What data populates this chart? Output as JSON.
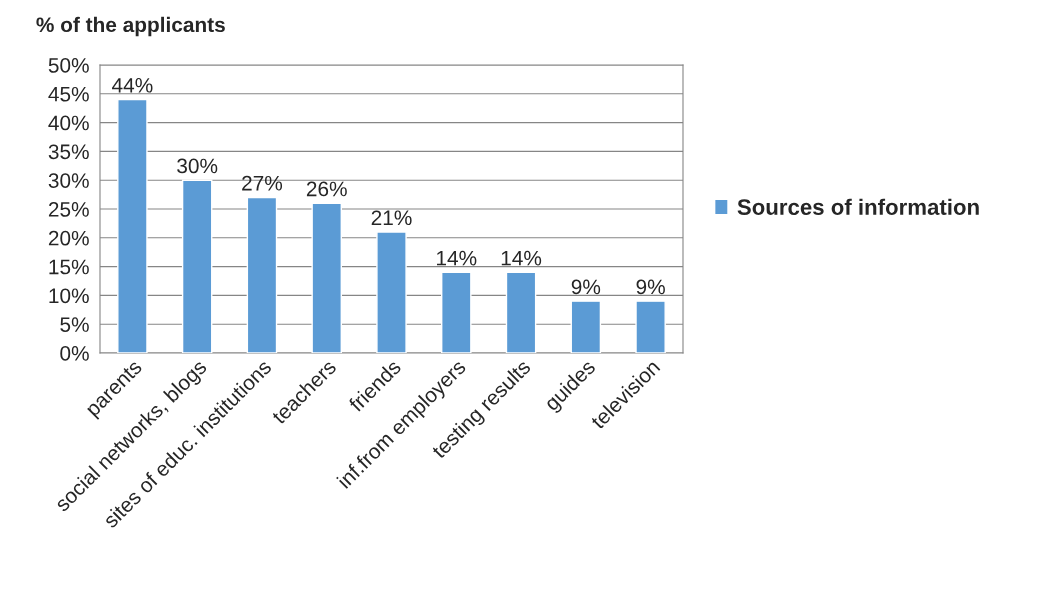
{
  "chart_data": {
    "type": "bar",
    "ylabel": "% of the applicants",
    "categories": [
      "parents",
      "social networks, blogs",
      "sites of educ. institutions",
      "teachers",
      "friends",
      "inf.from employers",
      "testing results",
      "guides",
      "television"
    ],
    "series": [
      {
        "name": "Sources of information",
        "color": "#5b9bd5",
        "values": [
          44,
          30,
          27,
          26,
          21,
          14,
          14,
          9,
          9
        ],
        "value_labels": [
          "44%",
          "30%",
          "27%",
          "26%",
          "21%",
          "14%",
          "14%",
          "9%",
          "9%"
        ]
      }
    ],
    "ylim": [
      0,
      50
    ],
    "yticks": [
      {
        "value": 0,
        "label": "0%"
      },
      {
        "value": 5,
        "label": "5%"
      },
      {
        "value": 10,
        "label": "10%"
      },
      {
        "value": 15,
        "label": "15%"
      },
      {
        "value": 20,
        "label": "20%"
      },
      {
        "value": 25,
        "label": "25%"
      },
      {
        "value": 30,
        "label": "30%"
      },
      {
        "value": 35,
        "label": "35%"
      },
      {
        "value": 40,
        "label": "40%"
      },
      {
        "value": 45,
        "label": "45%"
      },
      {
        "value": 50,
        "label": "50%"
      }
    ],
    "grid": "y",
    "legend": "right"
  }
}
